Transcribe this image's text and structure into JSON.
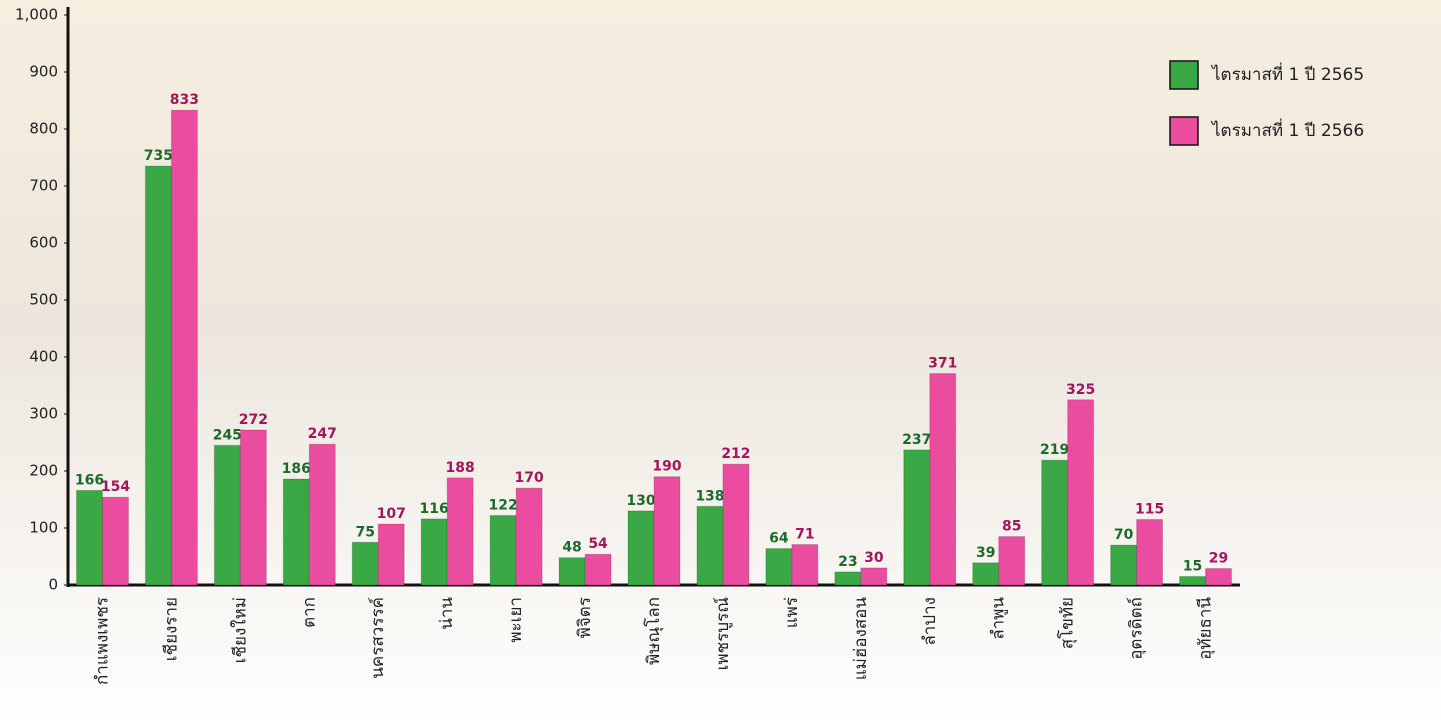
{
  "chart_data": {
    "type": "bar",
    "categories": [
      "กำแพงเพชร",
      "เชียงราย",
      "เชียงใหม่",
      "ตาก",
      "นครสวรรค์",
      "น่าน",
      "พะเยา",
      "พิจิตร",
      "พิษณุโลก",
      "เพชรบูรณ์",
      "แพร่",
      "แม่ฮ่องสอน",
      "ลำปาง",
      "ลำพูน",
      "สุโขทัย",
      "อุตรดิตถ์",
      "อุทัยธานี"
    ],
    "series": [
      {
        "name": "ไตรมาสที่ 1 ปี 2565",
        "color": "#3aa845",
        "values": [
          166,
          735,
          245,
          186,
          75,
          116,
          122,
          48,
          130,
          138,
          64,
          23,
          237,
          39,
          219,
          70,
          15
        ]
      },
      {
        "name": "ไตรมาสที่ 1 ปี 2566",
        "color": "#ea4c9f",
        "values": [
          154,
          833,
          272,
          247,
          107,
          188,
          170,
          54,
          190,
          212,
          71,
          30,
          371,
          85,
          325,
          115,
          29
        ]
      }
    ],
    "ylim": [
      0,
      1000
    ],
    "yticks": [
      0,
      100,
      200,
      300,
      400,
      500,
      600,
      700,
      800,
      900,
      {
        "value": 1000,
        "label": "1,000"
      }
    ],
    "legend": "top-right"
  }
}
